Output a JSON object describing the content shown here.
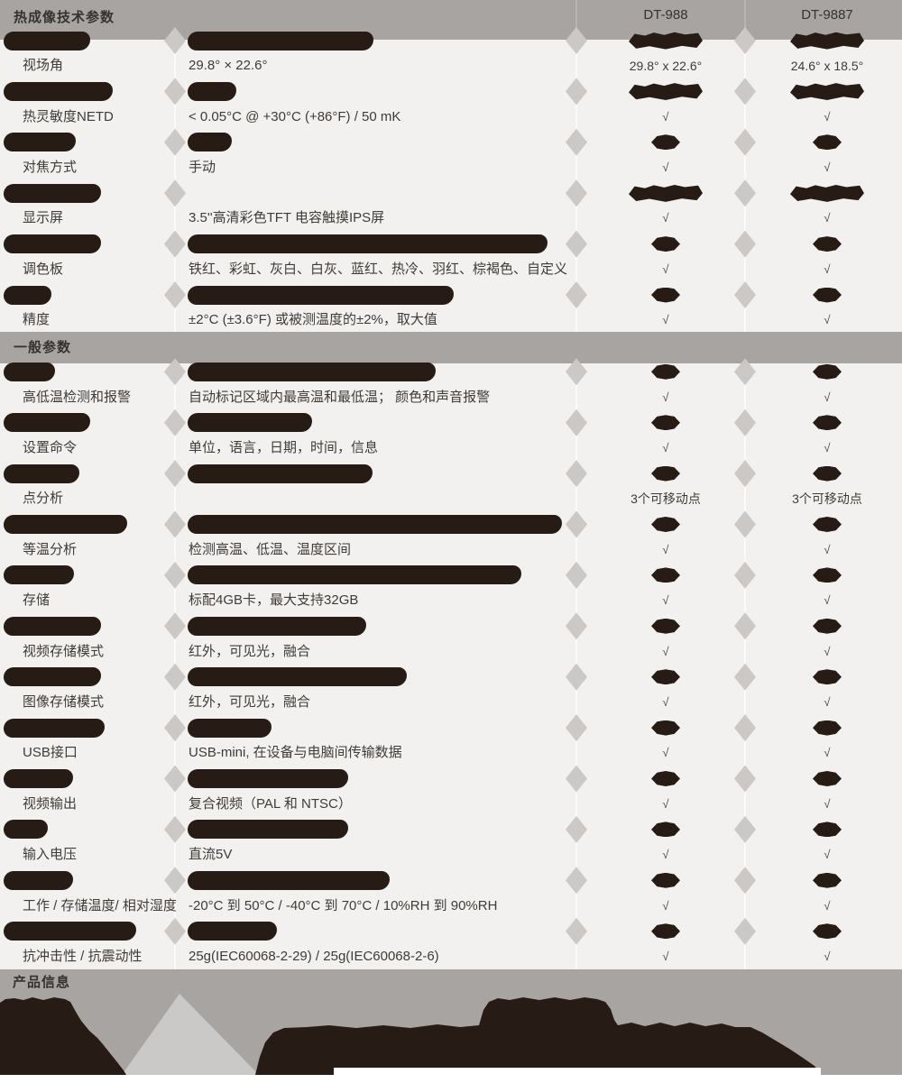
{
  "table": {
    "models": [
      "DT-988",
      "DT-9887"
    ],
    "check_symbol": "√",
    "sections": [
      {
        "title": "热成像技术参数",
        "rows": [
          {
            "redacted": true,
            "label_w": 96,
            "value_w": 206,
            "marks": "blob"
          },
          {
            "label": "视场角",
            "value": "29.8° × 22.6°",
            "m1": "29.8° x 22.6°",
            "m2": "24.6° x 18.5°"
          },
          {
            "redacted": true,
            "label_w": 121,
            "value_w": 54,
            "marks": "blob"
          },
          {
            "label": "热灵敏度NETD",
            "value": "< 0.05°C @ +30°C (+86°F) / 50 mK",
            "m1": "√",
            "m2": "√"
          },
          {
            "redacted": true,
            "label_w": 80,
            "value_w": 49,
            "marks": "diamond"
          },
          {
            "label": "对焦方式",
            "value": "手动",
            "m1": "√",
            "m2": "√"
          },
          {
            "redacted": true,
            "label_w": 108,
            "value_w": 0,
            "marks": "blob"
          },
          {
            "label": "显示屏",
            "value": "3.5''高清彩色TFT 电容触摸IPS屏",
            "m1": "√",
            "m2": "√"
          },
          {
            "redacted": true,
            "label_w": 108,
            "value_w": 399,
            "marks": "diamond"
          },
          {
            "label": "调色板",
            "value": "铁红、彩虹、灰白、白灰、蓝红、热冷、羽红、棕褐色、自定义",
            "m1": "√",
            "m2": "√"
          },
          {
            "redacted": true,
            "label_w": 53,
            "value_w": 295,
            "marks": "diamond"
          },
          {
            "label": "精度",
            "value": "±2°C (±3.6°F) 或被测温度的±2%，取大值",
            "m1": "√",
            "m2": "√"
          }
        ]
      },
      {
        "title": "一般参数",
        "rows": [
          {
            "redacted": true,
            "label_w": 57,
            "value_w": 275,
            "marks": "diamond"
          },
          {
            "label": "高低温检测和报警",
            "value": "自动标记区域内最高温和最低温； 颜色和声音报警",
            "m1": "√",
            "m2": "√"
          },
          {
            "redacted": true,
            "label_w": 96,
            "value_w": 138,
            "marks": "diamond"
          },
          {
            "label": "设置命令",
            "value": "单位，语言，日期，时间，信息",
            "m1": "√",
            "m2": "√"
          },
          {
            "redacted": true,
            "label_w": 84,
            "value_w": 205,
            "marks": "diamond"
          },
          {
            "label": "点分析",
            "value": "",
            "m1": "3个可移动点",
            "m2": "3个可移动点"
          },
          {
            "redacted": true,
            "label_w": 137,
            "value_w": 415,
            "marks": "diamond"
          },
          {
            "label": "等温分析",
            "value": "检测高温、低温、温度区间",
            "m1": "√",
            "m2": "√"
          },
          {
            "redacted": true,
            "label_w": 78,
            "value_w": 370,
            "marks": "diamond"
          },
          {
            "label": "存储",
            "value": "标配4GB卡，最大支持32GB",
            "m1": "√",
            "m2": "√"
          },
          {
            "redacted": true,
            "label_w": 108,
            "value_w": 198,
            "marks": "diamond"
          },
          {
            "label": "视频存储模式",
            "value": "红外，可见光，融合",
            "m1": "√",
            "m2": "√"
          },
          {
            "redacted": true,
            "label_w": 108,
            "value_w": 243,
            "marks": "diamond"
          },
          {
            "label": "图像存储模式",
            "value": "红外，可见光，融合",
            "m1": "√",
            "m2": "√"
          },
          {
            "redacted": true,
            "label_w": 112,
            "value_w": 93,
            "marks": "diamond"
          },
          {
            "label": "USB接口",
            "value": "USB-mini, 在设备与电脑间传输数据",
            "m1": "√",
            "m2": "√"
          },
          {
            "redacted": true,
            "label_w": 77,
            "value_w": 178,
            "marks": "diamond"
          },
          {
            "label": "视频输出",
            "value": "复合视频（PAL 和 NTSC）",
            "m1": "√",
            "m2": "√"
          },
          {
            "redacted": true,
            "label_w": 49,
            "value_w": 178,
            "marks": "diamond"
          },
          {
            "label": "输入电压",
            "value": "直流5V",
            "m1": "√",
            "m2": "√"
          },
          {
            "redacted": true,
            "label_w": 77,
            "value_w": 224,
            "marks": "diamond"
          },
          {
            "label": "工作 / 存储温度/ 相对湿度",
            "value": "-20°C 到 50°C / -40°C 到 70°C / 10%RH 到 90%RH",
            "m1": "√",
            "m2": "√"
          },
          {
            "redacted": true,
            "label_w": 147,
            "value_w": 99,
            "marks": "diamond"
          },
          {
            "label": "抗冲击性 / 抗震动性",
            "value": "25g(IEC60068-2-29) / 25g(IEC60068-2-6)",
            "m1": "√",
            "m2": "√"
          }
        ]
      }
    ],
    "product_info": {
      "title": "产品信息"
    }
  },
  "colors": {
    "band": "#a7a4a1",
    "background": "#f2f1ef",
    "redaction": "#271c15",
    "divider_diamond": "#cbc8c6",
    "triangle": "#cbc9c7",
    "text": "#403b37"
  }
}
